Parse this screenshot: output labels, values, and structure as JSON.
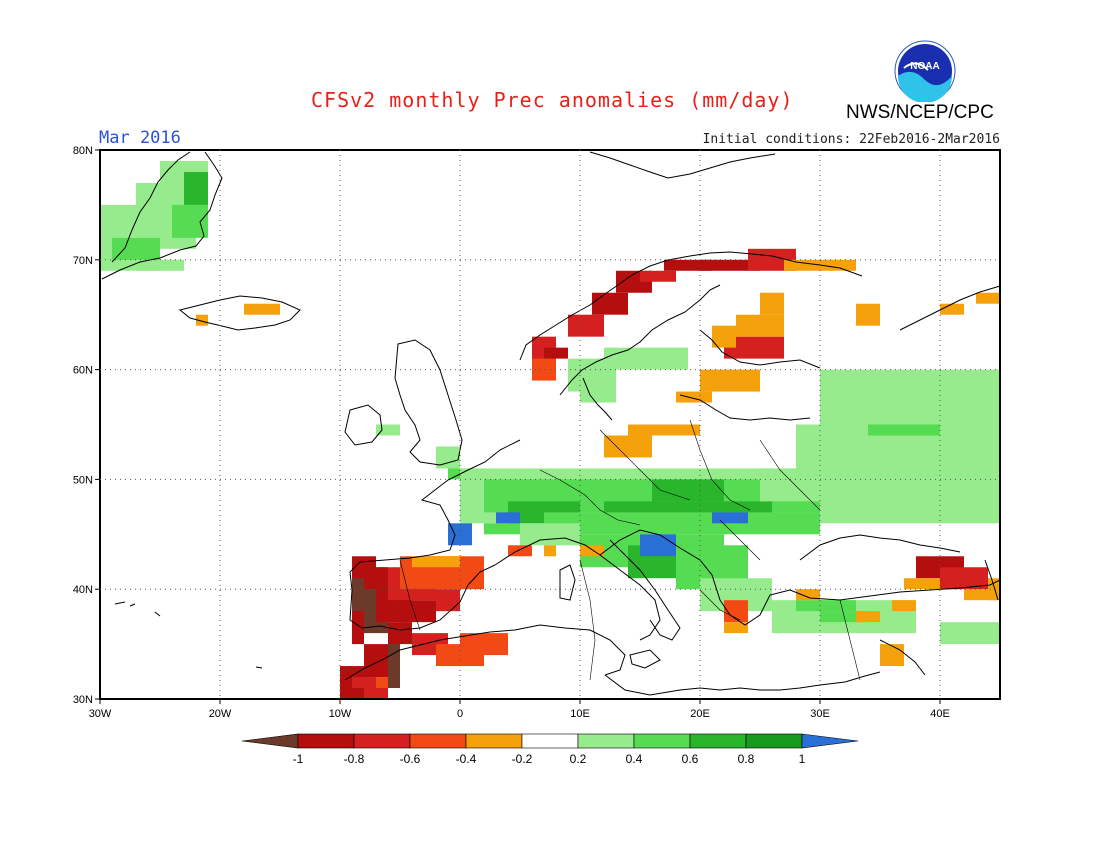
{
  "title": "CFSv2 monthly Prec anomalies (mm/day)",
  "agency": "NWS/NCEP/CPC",
  "logo_text": "NOAA",
  "month_label": "Mar 2016",
  "initial_conditions": "Initial conditions: 22Feb2016-2Mar2016",
  "map": {
    "lon_range": [
      -30,
      45
    ],
    "lat_range": [
      30,
      80
    ],
    "lat_labels": [
      "80N",
      "70N",
      "60N",
      "50N",
      "40N",
      "30N"
    ],
    "lon_labels": [
      "30W",
      "20W",
      "10W",
      "0",
      "10E",
      "20E",
      "30E",
      "40E"
    ],
    "gridlines": "dotted every 10 degrees"
  },
  "legend": {
    "tick_labels": [
      "-1",
      "-0.8",
      "-0.6",
      "-0.4",
      "-0.2",
      "0.2",
      "0.4",
      "0.6",
      "0.8",
      "1"
    ],
    "colors": [
      "#6b3a2a",
      "#b40e0e",
      "#d52020",
      "#f24a14",
      "#f5a10c",
      "#ffffff",
      "#96ec8c",
      "#56dc52",
      "#29b62c",
      "#189a1c",
      "#2a6fd6"
    ]
  },
  "anomaly_regions": [
    {
      "name": "Greenland",
      "category": "0.2 to 0.6"
    },
    {
      "name": "Norway coast",
      "category": "-0.4 to -0.8"
    },
    {
      "name": "Northern Finland",
      "category": "-0.2 to -0.6"
    },
    {
      "name": "Central Europe",
      "category": "0.2 to 0.8"
    },
    {
      "name": "Balkans",
      "category": "0.6 to >1"
    },
    {
      "name": "Western Russia",
      "category": "0.2 to 0.8"
    },
    {
      "name": "Iberia",
      "category": "-0.4 to <-1"
    },
    {
      "name": "Morocco",
      "category": "-0.6 to <-1"
    },
    {
      "name": "Turkey",
      "category": "0.2 to 0.6"
    },
    {
      "name": "Caucasus",
      "category": "-0.2 to -0.8"
    }
  ]
}
